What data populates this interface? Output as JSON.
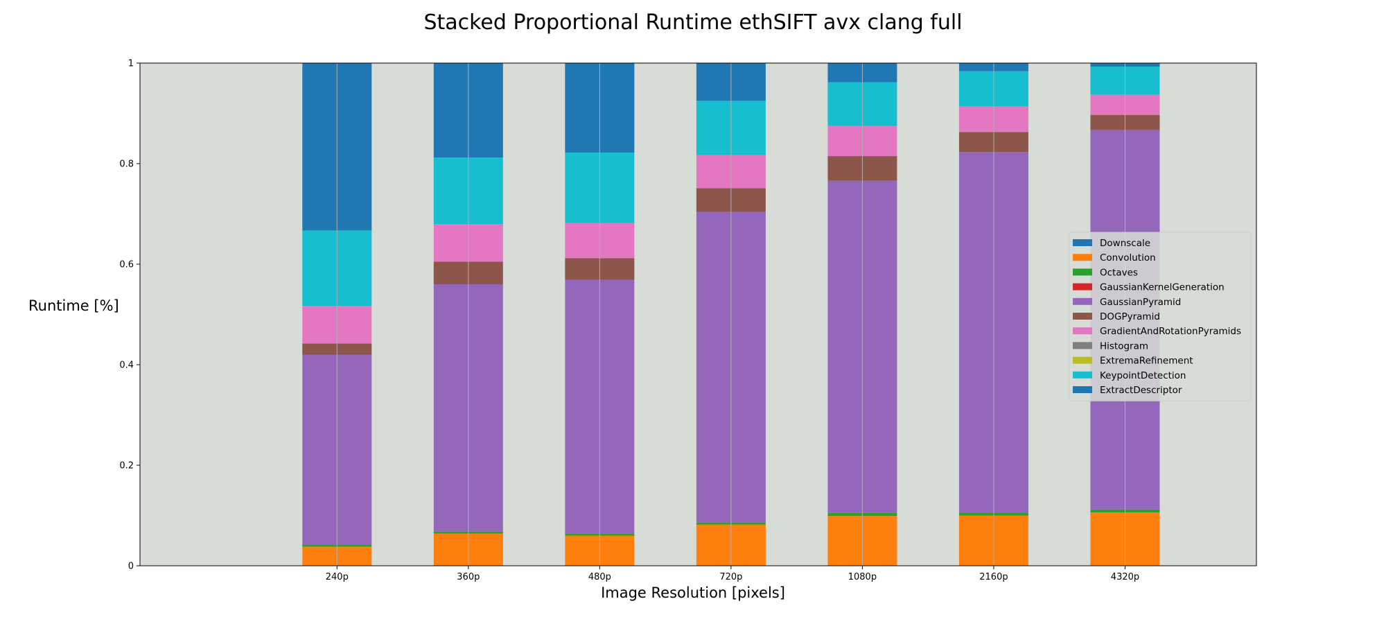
{
  "chart_data": {
    "type": "bar",
    "stacked": true,
    "title": "Stacked Proportional Runtime ethSIFT avx clang full",
    "xlabel": "Image Resolution [pixels]",
    "ylabel": "Runtime [%]",
    "categories": [
      "240p",
      "360p",
      "480p",
      "720p",
      "1080p",
      "2160p",
      "4320p"
    ],
    "ylim": [
      0,
      1
    ],
    "yticks": [
      "0",
      "0.2",
      "0.4",
      "0.6",
      "0.8",
      "1"
    ],
    "grid": "vertical",
    "legend_position": "right",
    "background": "#d8dcd6",
    "series": [
      {
        "name": "Downscale",
        "color": "#1f77b4",
        "values": [
          0.0,
          0.0,
          0.0,
          0.0,
          0.0,
          0.0,
          0.0
        ]
      },
      {
        "name": "Convolution",
        "color": "#ff7f0e",
        "values": [
          0.038,
          0.064,
          0.06,
          0.082,
          0.099,
          0.1,
          0.106
        ]
      },
      {
        "name": "Octaves",
        "color": "#2ca02c",
        "values": [
          0.004,
          0.004,
          0.004,
          0.004,
          0.006,
          0.006,
          0.006
        ]
      },
      {
        "name": "GaussianKernelGeneration",
        "color": "#d62728",
        "values": [
          0.0,
          0.0,
          0.0,
          0.0,
          0.0,
          0.0,
          0.0
        ]
      },
      {
        "name": "GaussianPyramid",
        "color": "#9467bd",
        "values": [
          0.378,
          0.492,
          0.505,
          0.618,
          0.661,
          0.717,
          0.755
        ]
      },
      {
        "name": "DOGPyramid",
        "color": "#8c564b",
        "values": [
          0.022,
          0.045,
          0.043,
          0.047,
          0.049,
          0.04,
          0.03
        ]
      },
      {
        "name": "GradientAndRotationPyramids",
        "color": "#e377c2",
        "values": [
          0.075,
          0.075,
          0.07,
          0.066,
          0.06,
          0.051,
          0.04
        ]
      },
      {
        "name": "Histogram",
        "color": "#7f7f7f",
        "values": [
          0.0,
          0.0,
          0.0,
          0.0,
          0.0,
          0.0,
          0.0
        ]
      },
      {
        "name": "ExtremaRefinement",
        "color": "#bcbd22",
        "values": [
          0.0,
          0.0,
          0.0,
          0.0,
          0.0,
          0.0,
          0.0
        ]
      },
      {
        "name": "KeypointDetection",
        "color": "#17becf",
        "values": [
          0.15,
          0.132,
          0.14,
          0.108,
          0.087,
          0.07,
          0.056
        ]
      },
      {
        "name": "ExtractDescriptor",
        "color": "#1f77b4",
        "values": [
          0.333,
          0.188,
          0.178,
          0.075,
          0.038,
          0.016,
          0.007
        ]
      }
    ]
  }
}
